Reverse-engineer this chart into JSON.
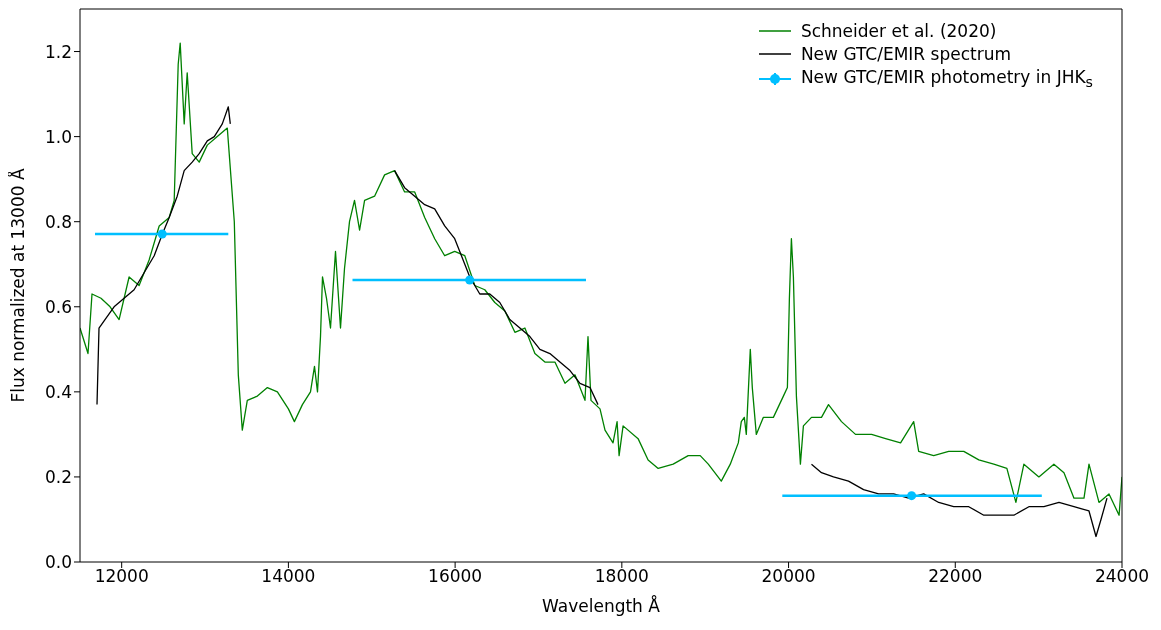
{
  "chart_data": {
    "type": "line",
    "xlabel": "Wavelength Å",
    "ylabel": "Flux normalized at 13000 Å",
    "xlim": [
      11500,
      24000
    ],
    "xticks": [
      12000,
      14000,
      16000,
      18000,
      20000,
      22000,
      24000
    ],
    "ylim": [
      0,
      1.3
    ],
    "yticks": [
      {
        "value": 0,
        "label": "0.0"
      },
      {
        "value": 0.2,
        "label": "0.2"
      },
      {
        "value": 0.4,
        "label": "0.4"
      },
      {
        "value": 0.6,
        "label": "0.6"
      },
      {
        "value": 0.8,
        "label": "0.8"
      },
      {
        "value": 1,
        "label": "1.0"
      },
      {
        "value": 1.2,
        "label": "1.2"
      }
    ],
    "legend": "top right",
    "series": [
      {
        "name": "Schneider et al. (2020)",
        "color": "#008000",
        "x": [
          11500,
          11596,
          11644,
          11752,
          11861,
          11969,
          12089,
          12209,
          12329,
          12450,
          12570,
          12630,
          12678,
          12702,
          12750,
          12786,
          12846,
          12930,
          13027,
          13147,
          13267,
          13351,
          13399,
          13447,
          13507,
          13628,
          13748,
          13868,
          14000,
          14072,
          14168,
          14265,
          14313,
          14349,
          14385,
          14409,
          14457,
          14505,
          14565,
          14625,
          14673,
          14733,
          14793,
          14854,
          14914,
          15034,
          15154,
          15274,
          15394,
          15515,
          15635,
          15755,
          15875,
          15995,
          16116,
          16236,
          16356,
          16476,
          16597,
          16717,
          16837,
          16957,
          17077,
          17197,
          17318,
          17438,
          17558,
          17594,
          17630,
          17738,
          17798,
          17894,
          17943,
          17967,
          18015,
          18195,
          18315,
          18436,
          18616,
          18796,
          18940,
          19037,
          19193,
          19301,
          19397,
          19433,
          19469,
          19493,
          19541,
          19565,
          19613,
          19698,
          19818,
          19938,
          19986,
          20010,
          20034,
          20058,
          20094,
          20142,
          20178,
          20275,
          20395,
          20479,
          20635,
          20803,
          20996,
          21164,
          21344,
          21501,
          21561,
          21741,
          21921,
          22102,
          22282,
          22462,
          22619,
          22727,
          22823,
          23003,
          23183,
          23304,
          23424,
          23544,
          23604,
          23724,
          23844,
          23965,
          24000
        ],
        "values": [
          0.55,
          0.49,
          0.63,
          0.62,
          0.6,
          0.57,
          0.67,
          0.65,
          0.71,
          0.79,
          0.81,
          0.85,
          1.17,
          1.22,
          1.03,
          1.15,
          0.96,
          0.94,
          0.98,
          1.0,
          1.02,
          0.8,
          0.44,
          0.31,
          0.38,
          0.39,
          0.41,
          0.4,
          0.36,
          0.33,
          0.37,
          0.4,
          0.46,
          0.4,
          0.53,
          0.67,
          0.62,
          0.55,
          0.73,
          0.55,
          0.69,
          0.8,
          0.85,
          0.78,
          0.85,
          0.86,
          0.91,
          0.92,
          0.87,
          0.87,
          0.81,
          0.76,
          0.72,
          0.73,
          0.72,
          0.65,
          0.64,
          0.61,
          0.59,
          0.54,
          0.55,
          0.49,
          0.47,
          0.47,
          0.42,
          0.44,
          0.38,
          0.53,
          0.38,
          0.36,
          0.31,
          0.28,
          0.33,
          0.25,
          0.32,
          0.29,
          0.24,
          0.22,
          0.23,
          0.25,
          0.25,
          0.23,
          0.19,
          0.23,
          0.28,
          0.33,
          0.34,
          0.3,
          0.5,
          0.41,
          0.3,
          0.34,
          0.34,
          0.39,
          0.41,
          0.62,
          0.76,
          0.67,
          0.39,
          0.23,
          0.32,
          0.34,
          0.34,
          0.37,
          0.33,
          0.3,
          0.3,
          0.29,
          0.28,
          0.33,
          0.26,
          0.25,
          0.26,
          0.26,
          0.24,
          0.23,
          0.22,
          0.14,
          0.23,
          0.2,
          0.23,
          0.21,
          0.15,
          0.15,
          0.23,
          0.14,
          0.16,
          0.11,
          0.2
        ]
      },
      {
        "name": "New GTC/EMIR spectrum",
        "color": "#000000",
        "x": [
          11704,
          11728,
          11800,
          11909,
          12029,
          12149,
          12269,
          12390,
          12486,
          12570,
          12666,
          12750,
          12846,
          12930,
          13027,
          13111,
          13207,
          13279,
          13303,
          13350,
          15274,
          15394,
          15515,
          15635,
          15755,
          15875,
          15995,
          16116,
          16176,
          16296,
          16416,
          16536,
          16656,
          16777,
          16897,
          17017,
          17137,
          17257,
          17378,
          17498,
          17618,
          17714,
          18000,
          20275,
          20395,
          20539,
          20719,
          20900,
          21080,
          21260,
          21441,
          21621,
          21801,
          21981,
          22162,
          22342,
          22522,
          22703,
          22883,
          23063,
          23244,
          23424,
          23604,
          23688,
          23748,
          23820
        ],
        "values": [
          0.37,
          0.55,
          0.57,
          0.6,
          0.62,
          0.64,
          0.68,
          0.72,
          0.77,
          0.81,
          0.86,
          0.92,
          0.94,
          0.96,
          0.99,
          1.0,
          1.03,
          1.07,
          1.03,
          null,
          0.92,
          0.88,
          0.86,
          0.84,
          0.83,
          0.79,
          0.76,
          0.7,
          0.67,
          0.63,
          0.63,
          0.61,
          0.57,
          0.55,
          0.53,
          0.5,
          0.49,
          0.47,
          0.45,
          0.42,
          0.41,
          0.37,
          null,
          0.23,
          0.21,
          0.2,
          0.19,
          0.17,
          0.16,
          0.16,
          0.15,
          0.16,
          0.14,
          0.13,
          0.13,
          0.11,
          0.11,
          0.11,
          0.13,
          0.13,
          0.14,
          0.13,
          0.12,
          0.06,
          0.1,
          0.15
        ]
      },
      {
        "name": "New GTC/EMIR photometry in JHK$_{s}$",
        "type": "scatter",
        "color": "#00bfff",
        "marker": "circle",
        "x": [
          12486,
          16175,
          21476
        ],
        "values": [
          0.771,
          0.663,
          0.156
        ],
        "xerrors": [
          [
            11680,
            13279
          ],
          [
            14769,
            17570
          ],
          [
            19925,
            23038
          ]
        ]
      }
    ]
  }
}
